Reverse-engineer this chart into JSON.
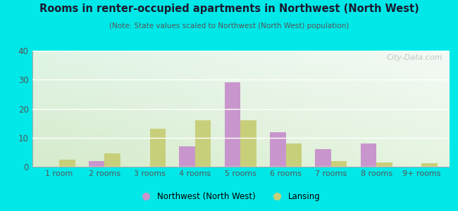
{
  "title": "Rooms in renter-occupied apartments in Northwest (North West)",
  "subtitle": "(Note: State values scaled to Northwest (North West) population)",
  "categories": [
    "1 room",
    "2 rooms",
    "3 rooms",
    "4 rooms",
    "5 rooms",
    "6 rooms",
    "7 rooms",
    "8 rooms",
    "9+ rooms"
  ],
  "northwest_values": [
    0,
    2,
    0,
    7,
    29,
    12,
    6,
    8,
    0
  ],
  "lansing_values": [
    2.5,
    4.5,
    13,
    16,
    16,
    8,
    2,
    1.5,
    1.2
  ],
  "northwest_color": "#c896cc",
  "lansing_color": "#c8cf7a",
  "ylim": [
    0,
    40
  ],
  "yticks": [
    0,
    10,
    20,
    30,
    40
  ],
  "background_color": "#00e8e8",
  "watermark": "City-Data.com",
  "legend_northwest": "Northwest (North West)",
  "legend_lansing": "Lansing",
  "bar_width": 0.35,
  "title_color": "#1a1a2e",
  "subtitle_color": "#555555",
  "tick_color": "#555555"
}
